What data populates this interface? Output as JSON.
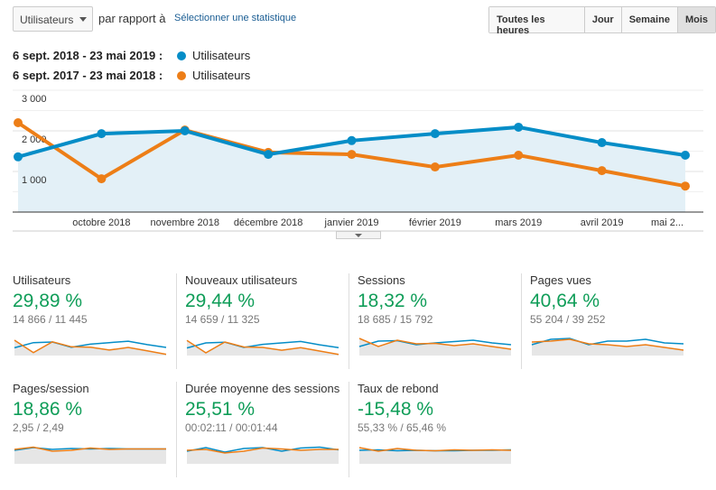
{
  "toolbar": {
    "metric_select": "Utilisateurs",
    "compare_label": "par rapport à",
    "select_stat": "Sélectionner une statistique",
    "periods": [
      {
        "label": "Toutes les heures",
        "active": false
      },
      {
        "label": "Jour",
        "active": false
      },
      {
        "label": "Semaine",
        "active": false
      },
      {
        "label": "Mois",
        "active": true
      }
    ]
  },
  "legend": [
    {
      "range": "6 sept. 2018 - 23 mai 2019 :",
      "name": "Utilisateurs",
      "color": "#058dc7"
    },
    {
      "range": "6 sept. 2017 - 23 mai 2018 :",
      "name": "Utilisateurs",
      "color": "#ed7e17"
    }
  ],
  "chart_data": {
    "type": "line",
    "ylim": [
      0,
      3000
    ],
    "yticks": [
      "3 000",
      "2 000",
      "1 000"
    ],
    "xticks": [
      "octobre 2018",
      "novembre 2018",
      "décembre 2018",
      "janvier 2019",
      "février 2019",
      "mars 2019",
      "avril 2019",
      "mai 2..."
    ],
    "series": [
      {
        "name": "Utilisateurs",
        "color": "#058dc7",
        "values": [
          1360,
          1930,
          2000,
          1420,
          1760,
          1930,
          2090,
          1710,
          1400
        ]
      },
      {
        "name": "Utilisateurs",
        "color": "#ed7e17",
        "values": [
          2200,
          820,
          2020,
          1470,
          1420,
          1110,
          1400,
          1020,
          640
        ]
      }
    ],
    "grid": true
  },
  "metrics": [
    {
      "title": "Utilisateurs",
      "value": "29,89 %",
      "detail": "14 866 / 11 445",
      "cur": [
        1360,
        1930,
        2000,
        1420,
        1760,
        1930,
        2090,
        1710,
        1400
      ],
      "prev": [
        2200,
        820,
        2020,
        1470,
        1420,
        1110,
        1400,
        1020,
        640
      ]
    },
    {
      "title": "Nouveaux utilisateurs",
      "value": "29,44 %",
      "detail": "14 659 / 11 325",
      "cur": [
        1340,
        1900,
        1980,
        1400,
        1740,
        1900,
        2060,
        1690,
        1380
      ],
      "prev": [
        2180,
        800,
        2000,
        1450,
        1400,
        1090,
        1380,
        1000,
        620
      ]
    },
    {
      "title": "Sessions",
      "value": "18,32 %",
      "detail": "18 685 / 15 792",
      "cur": [
        1500,
        2100,
        2150,
        1700,
        1900,
        2050,
        2200,
        1900,
        1700
      ],
      "prev": [
        2400,
        1500,
        2200,
        1800,
        1850,
        1600,
        1800,
        1500,
        1200
      ]
    },
    {
      "title": "Pages vues",
      "value": "40,64 %",
      "detail": "55 204 / 39 252",
      "cur": [
        1700,
        2300,
        2400,
        1700,
        2100,
        2100,
        2300,
        1900,
        1800
      ],
      "prev": [
        2000,
        2100,
        2300,
        1800,
        1700,
        1500,
        1700,
        1400,
        1100
      ]
    },
    {
      "title": "Pages/session",
      "value": "18,86 %",
      "detail": "2,95 / 2,49",
      "cur": [
        2000,
        2300,
        2100,
        2200,
        2150,
        2200,
        2150,
        2150,
        2150
      ],
      "prev": [
        2100,
        2350,
        1900,
        2000,
        2250,
        2100,
        2150,
        2150,
        2150
      ]
    },
    {
      "title": "Durée moyenne des sessions",
      "value": "25,51 %",
      "detail": "00:02:11 / 00:01:44",
      "cur": [
        1900,
        2300,
        1800,
        2200,
        2300,
        1900,
        2250,
        2350,
        2050
      ],
      "prev": [
        2000,
        2100,
        1700,
        1900,
        2250,
        2150,
        2000,
        2100,
        2100
      ]
    },
    {
      "title": "Taux de rebond",
      "value": "-15,48 %",
      "detail": "55,33 % / 65,46 %",
      "cur": [
        2000,
        2050,
        1950,
        2000,
        1950,
        1950,
        2000,
        2000,
        2050
      ],
      "prev": [
        2300,
        1900,
        2200,
        2000,
        1950,
        2050,
        2000,
        2050,
        2000
      ]
    }
  ]
}
